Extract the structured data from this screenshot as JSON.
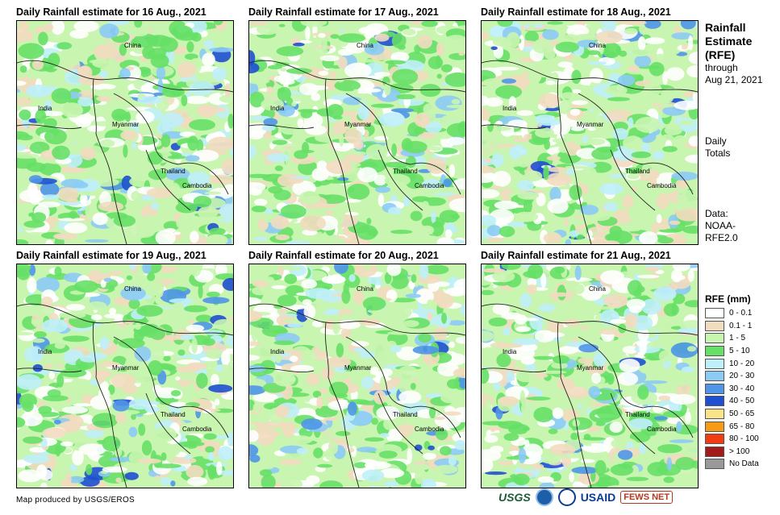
{
  "panels": [
    {
      "title": "Daily Rainfall estimate for 16 Aug., 2021"
    },
    {
      "title": "Daily Rainfall estimate for 17 Aug., 2021"
    },
    {
      "title": "Daily Rainfall estimate for 18 Aug., 2021"
    },
    {
      "title": "Daily Rainfall estimate for 19 Aug., 2021"
    },
    {
      "title": "Daily Rainfall estimate for 20 Aug., 2021"
    },
    {
      "title": "Daily Rainfall estimate for 21 Aug., 2021"
    }
  ],
  "country_labels": {
    "china": "China",
    "india": "India",
    "myanmar": "Myanmar",
    "thailand": "Thailand",
    "cambodia": "Cambodia"
  },
  "sidebar": {
    "title_line1": "Rainfall",
    "title_line2": "Estimate",
    "title_line3": "(RFE)",
    "through": "through",
    "through_date": "Aug 21, 2021",
    "daily": "Daily",
    "totals": "Totals",
    "data_label": "Data:",
    "data_source1": "NOAA-",
    "data_source2": "RFE2.0"
  },
  "legend": {
    "title": "RFE (mm)",
    "items": [
      {
        "label": "0 - 0.1",
        "color": "#ffffff"
      },
      {
        "label": "0.1 - 1",
        "color": "#f2dcc0"
      },
      {
        "label": "1 - 5",
        "color": "#c8f5b0"
      },
      {
        "label": "5 - 10",
        "color": "#66e066"
      },
      {
        "label": "10 - 20",
        "color": "#bff0fa"
      },
      {
        "label": "20 - 30",
        "color": "#8ccbf5"
      },
      {
        "label": "30 - 40",
        "color": "#4f96e8"
      },
      {
        "label": "40 - 50",
        "color": "#1f4fd1"
      },
      {
        "label": "50 - 65",
        "color": "#fbe38a"
      },
      {
        "label": "65 - 80",
        "color": "#f59b15"
      },
      {
        "label": "80 - 100",
        "color": "#f03c10"
      },
      {
        "label": "> 100",
        "color": "#a31a1a"
      },
      {
        "label": "No Data",
        "color": "#999999"
      }
    ]
  },
  "credit": "Map produced by USGS/EROS",
  "logos": {
    "usgs": "USGS",
    "usaid": "USAID",
    "fews": "FEWS NET"
  }
}
